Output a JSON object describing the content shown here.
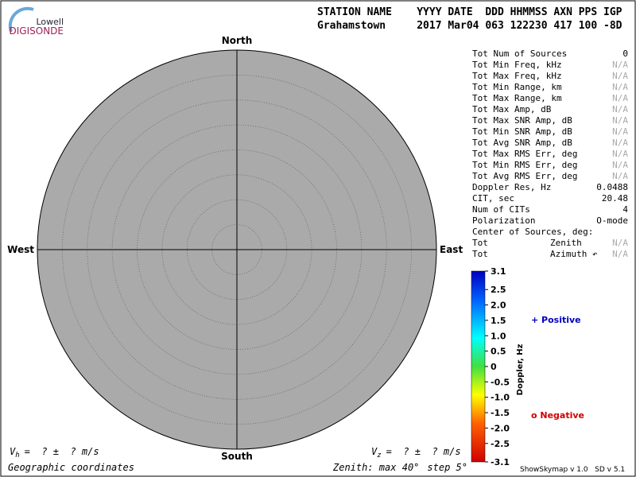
{
  "logo": {
    "top": "Lowell",
    "bottom": "DIGISONDE"
  },
  "header": {
    "line1": "STATION NAME    YYYY DATE  DDD HHMMSS AXN PPS IGP",
    "line2": "Grahamstown     2017 Mar04 063 122230 417 100 -8D"
  },
  "chart_data": {
    "type": "skymap",
    "directions": {
      "north": "North",
      "south": "South",
      "east": "East",
      "west": "West"
    },
    "zenith_text": "Zenith: max",
    "zenith_max": {
      "value": 40,
      "label": "40°"
    },
    "step_text": "step",
    "zenith_step": {
      "value": 5,
      "label": "5°"
    },
    "coordinates": "Geographic coordinates",
    "colorbar": {
      "label": "Doppler, Hz",
      "lim": [
        -3.1,
        3.1
      ],
      "ticks": [
        3.1,
        2.5,
        {
          "value": 2,
          "label": "2.0"
        },
        1.5,
        {
          "value": 1,
          "label": "1.0"
        },
        0.5,
        0,
        -0.5,
        {
          "value": -1,
          "label": "-1.0"
        },
        -1.5,
        {
          "value": -2,
          "label": "-2.0"
        },
        -2.5,
        -3.1
      ]
    },
    "legend": {
      "positive": "+ Positive",
      "negative": "o Negative"
    }
  },
  "stats": [
    [
      "Tot Num of Sources",
      "0"
    ],
    [
      "Tot Min Freq, kHz",
      "N/A"
    ],
    [
      "Tot Max Freq, kHz",
      "N/A"
    ],
    [
      "Tot Min Range, km",
      "N/A"
    ],
    [
      "Tot Max Range, km",
      "N/A"
    ],
    [
      "Tot Max Amp, dB",
      "N/A"
    ],
    [
      "Tot Max SNR Amp, dB",
      "N/A"
    ],
    [
      "Tot Min SNR Amp, dB",
      "N/A"
    ],
    [
      "Tot Avg SNR Amp, dB",
      "N/A"
    ],
    [
      "Tot Max RMS Err, deg",
      "N/A"
    ],
    [
      "Tot Min RMS Err, deg",
      "N/A"
    ],
    [
      "Tot Avg RMS Err, deg",
      "N/A"
    ],
    [
      "Doppler Res, Hz",
      "0.0488"
    ],
    [
      "CIT, sec",
      "20.48"
    ],
    [
      "Num of CITs",
      "4"
    ],
    [
      "Polarization",
      "O-mode"
    ],
    [
      "Center of Sources, deg:"
    ],
    [
      "Tot",
      "Zenith",
      "N/A"
    ],
    [
      "Tot",
      "Azimuth ↶",
      "N/A"
    ]
  ],
  "velocity_h": {
    "symbol": "V",
    "sub": "h",
    "text": "=  ? ±  ? m/s"
  },
  "velocity_z": {
    "symbol": "V",
    "sub": "z",
    "text": "=  ? ±  ? m/s"
  },
  "version": "ShowSkymap v 1.0   SD v 5.1"
}
